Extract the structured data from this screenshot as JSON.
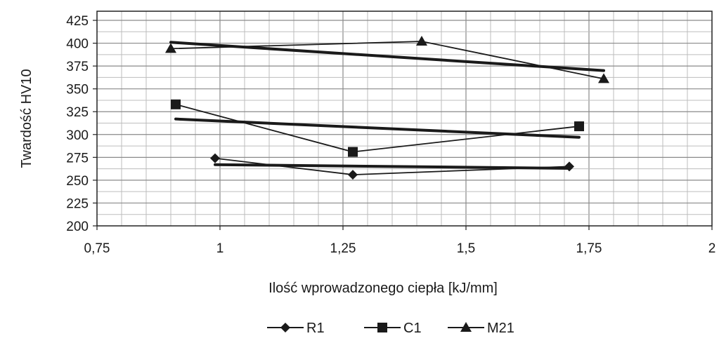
{
  "chart_data": {
    "type": "scatter",
    "title": "",
    "xlabel": "Ilość wprowadzonego ciepła [kJ/mm]",
    "ylabel": "Twardość HV10",
    "xlim": [
      0.75,
      2
    ],
    "ylim": [
      200,
      435
    ],
    "x_ticks": [
      0.75,
      1,
      1.25,
      1.5,
      1.75,
      2
    ],
    "x_tick_labels": [
      "0,75",
      "1",
      "1,25",
      "1,5",
      "1,75",
      "2"
    ],
    "y_ticks": [
      200,
      225,
      250,
      275,
      300,
      325,
      350,
      375,
      400,
      425
    ],
    "y_tick_labels": [
      "200",
      "225",
      "250",
      "275",
      "300",
      "325",
      "350",
      "375",
      "400",
      "425"
    ],
    "grid": true,
    "legend_position": "bottom",
    "series": [
      {
        "name": "R1",
        "marker": "diamond",
        "x": [
          0.99,
          1.27,
          1.71
        ],
        "y": [
          274,
          256,
          265
        ],
        "trend_x": [
          0.99,
          1.71
        ],
        "trend_y": [
          267,
          263
        ]
      },
      {
        "name": "C1",
        "marker": "square",
        "x": [
          0.91,
          1.27,
          1.73
        ],
        "y": [
          333,
          281,
          309
        ],
        "trend_x": [
          0.91,
          1.73
        ],
        "trend_y": [
          317,
          297
        ]
      },
      {
        "name": "M21",
        "marker": "triangle",
        "x": [
          0.9,
          1.41,
          1.78
        ],
        "y": [
          394,
          402,
          361
        ],
        "trend_x": [
          0.9,
          1.78
        ],
        "trend_y": [
          401,
          370
        ]
      }
    ]
  }
}
